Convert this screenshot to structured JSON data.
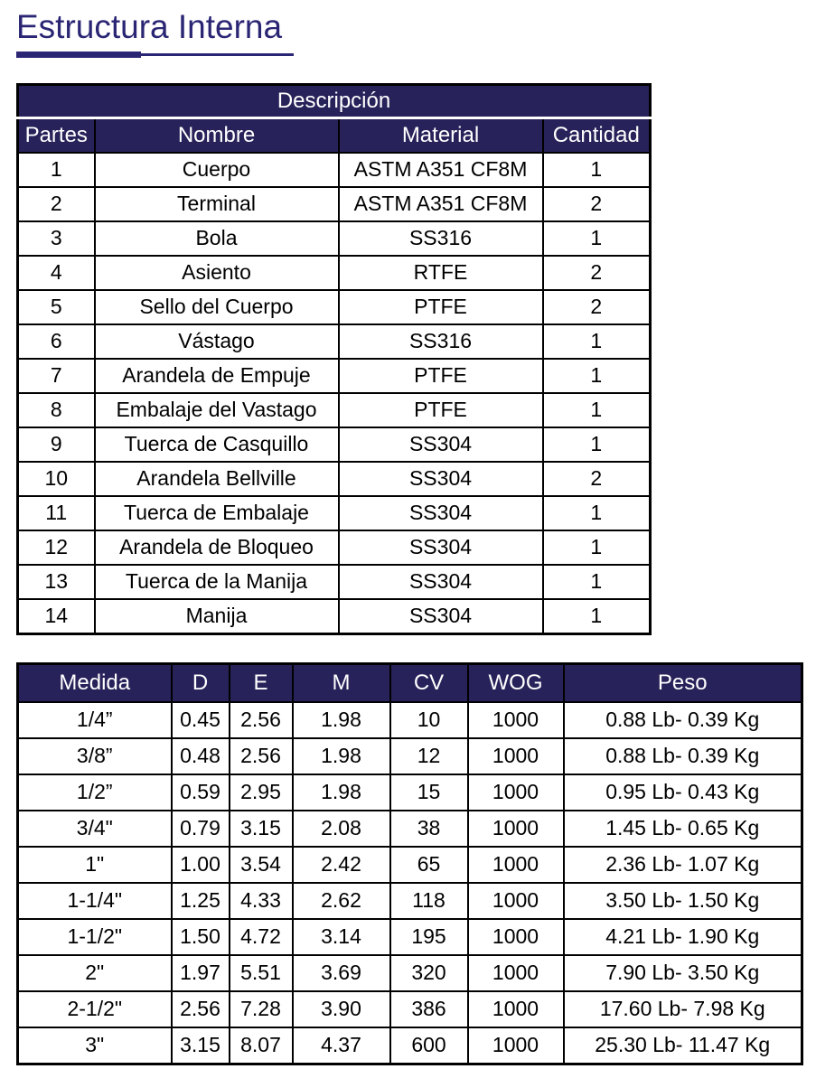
{
  "page": {
    "title": "Estructura Interna"
  },
  "colors": {
    "header_navy": "#272259",
    "title_navy": "#2b2674",
    "border_black": "#000000",
    "header_text": "#ffffff"
  },
  "parts_table": {
    "title": "Descripción",
    "columns": [
      "Partes",
      "Nombre",
      "Material",
      "Cantidad"
    ],
    "rows": [
      [
        "1",
        "Cuerpo",
        "ASTM A351 CF8M",
        "1"
      ],
      [
        "2",
        "Terminal",
        "ASTM A351 CF8M",
        "2"
      ],
      [
        "3",
        "Bola",
        "SS316",
        "1"
      ],
      [
        "4",
        "Asiento",
        "RTFE",
        "2"
      ],
      [
        "5",
        "Sello del Cuerpo",
        "PTFE",
        "2"
      ],
      [
        "6",
        "Vástago",
        "SS316",
        "1"
      ],
      [
        "7",
        "Arandela de Empuje",
        "PTFE",
        "1"
      ],
      [
        "8",
        "Embalaje del Vastago",
        "PTFE",
        "1"
      ],
      [
        "9",
        "Tuerca de Casquillo",
        "SS304",
        "1"
      ],
      [
        "10",
        "Arandela Bellville",
        "SS304",
        "2"
      ],
      [
        "11",
        "Tuerca de Embalaje",
        "SS304",
        "1"
      ],
      [
        "12",
        "Arandela de Bloqueo",
        "SS304",
        "1"
      ],
      [
        "13",
        "Tuerca de la Manija",
        "SS304",
        "1"
      ],
      [
        "14",
        "Manija",
        "SS304",
        "1"
      ]
    ]
  },
  "dimensions_table": {
    "columns": [
      "Medida",
      "D",
      "E",
      "M",
      "CV",
      "WOG",
      "Peso"
    ],
    "rows": [
      [
        "1/4”",
        "0.45",
        "2.56",
        "1.98",
        "10",
        "1000",
        "0.88 Lb- 0.39 Kg"
      ],
      [
        "3/8”",
        "0.48",
        "2.56",
        "1.98",
        "12",
        "1000",
        "0.88 Lb- 0.39 Kg"
      ],
      [
        "1/2”",
        "0.59",
        "2.95",
        "1.98",
        "15",
        "1000",
        "0.95 Lb- 0.43 Kg"
      ],
      [
        "3/4\"",
        "0.79",
        "3.15",
        "2.08",
        "38",
        "1000",
        "1.45 Lb- 0.65 Kg"
      ],
      [
        "1\"",
        "1.00",
        "3.54",
        "2.42",
        "65",
        "1000",
        "2.36 Lb- 1.07 Kg"
      ],
      [
        "1-1/4\"",
        "1.25",
        "4.33",
        "2.62",
        "118",
        "1000",
        "3.50 Lb- 1.50 Kg"
      ],
      [
        "1-1/2\"",
        "1.50",
        "4.72",
        "3.14",
        "195",
        "1000",
        "4.21 Lb- 1.90 Kg"
      ],
      [
        "2\"",
        "1.97",
        "5.51",
        "3.69",
        "320",
        "1000",
        "7.90 Lb- 3.50 Kg"
      ],
      [
        "2-1/2\"",
        "2.56",
        "7.28",
        "3.90",
        "386",
        "1000",
        "17.60 Lb- 7.98 Kg"
      ],
      [
        "3\"",
        "3.15",
        "8.07",
        "4.37",
        "600",
        "1000",
        "25.30 Lb- 11.47 Kg"
      ]
    ]
  }
}
